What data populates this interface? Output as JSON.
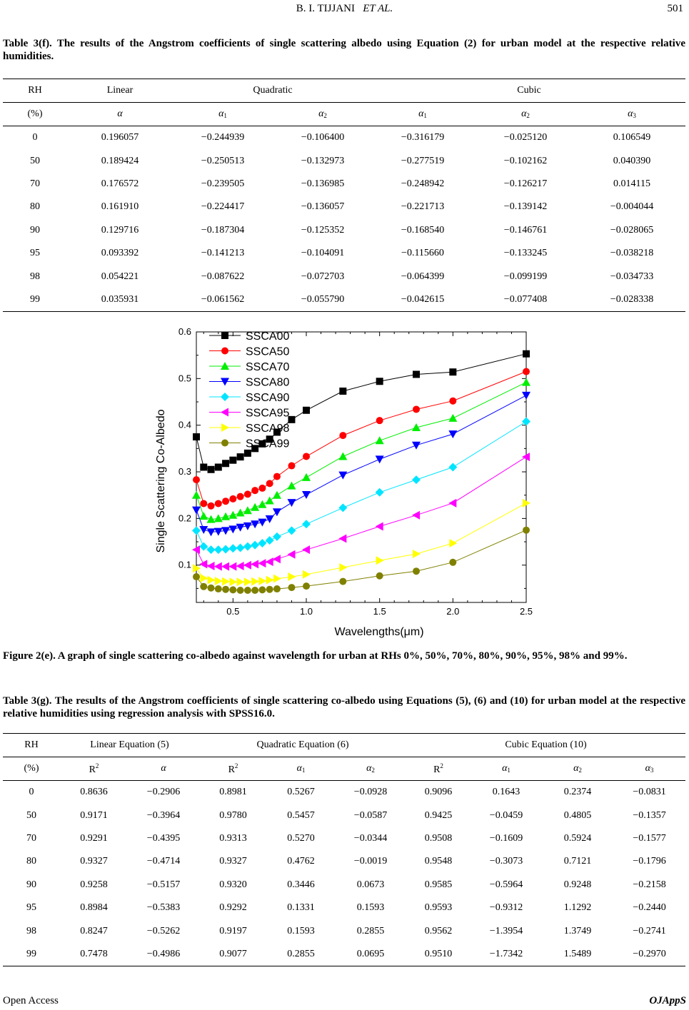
{
  "header": {
    "authors": "B. I. TIJJANI",
    "etal": "ET AL.",
    "page": "501"
  },
  "table_f": {
    "caption": "Table 3(f). The results of the Angstrom coefficients of single scattering albedo using Equation (2) for urban model at the respective relative humidities.",
    "groups": [
      "RH",
      "Linear",
      "Quadratic",
      "Cubic"
    ],
    "subheads": [
      "(%)",
      "α",
      "α",
      "α",
      "α",
      "α",
      "α"
    ],
    "subs": [
      "",
      "",
      "1",
      "2",
      "1",
      "2",
      "3"
    ],
    "rows": [
      [
        "0",
        "0.196057",
        "−0.244939",
        "−0.106400",
        "−0.316179",
        "−0.025120",
        "0.106549"
      ],
      [
        "50",
        "0.189424",
        "−0.250513",
        "−0.132973",
        "−0.277519",
        "−0.102162",
        "0.040390"
      ],
      [
        "70",
        "0.176572",
        "−0.239505",
        "−0.136985",
        "−0.248942",
        "−0.126217",
        "0.014115"
      ],
      [
        "80",
        "0.161910",
        "−0.224417",
        "−0.136057",
        "−0.221713",
        "−0.139142",
        "−0.004044"
      ],
      [
        "90",
        "0.129716",
        "−0.187304",
        "−0.125352",
        "−0.168540",
        "−0.146761",
        "−0.028065"
      ],
      [
        "95",
        "0.093392",
        "−0.141213",
        "−0.104091",
        "−0.115660",
        "−0.133245",
        "−0.038218"
      ],
      [
        "98",
        "0.054221",
        "−0.087622",
        "−0.072703",
        "−0.064399",
        "−0.099199",
        "−0.034733"
      ],
      [
        "99",
        "0.035931",
        "−0.061562",
        "−0.055790",
        "−0.042615",
        "−0.077408",
        "−0.028338"
      ]
    ]
  },
  "figure": {
    "caption": "Figure 2(e). A graph of single scattering co-albedo against wavelength for urban at RHs 0%, 50%, 70%, 80%, 90%, 95%, 98% and 99%."
  },
  "chart_data": {
    "type": "line",
    "xlabel": "Wavelengths(μm)",
    "ylabel": "Single Scattering Co-Albedo",
    "xlim": [
      0.25,
      2.5
    ],
    "ylim": [
      0.02,
      0.6
    ],
    "xticks": [
      "0.5",
      "1.0",
      "1.5",
      "2.0",
      "2.5"
    ],
    "xtick_values": [
      0.5,
      1.0,
      1.5,
      2.0,
      2.5
    ],
    "yticks": [
      "0.1",
      "0.2",
      "0.3",
      "0.4",
      "0.5",
      "0.6"
    ],
    "ytick_values": [
      0.1,
      0.2,
      0.3,
      0.4,
      0.5,
      0.6
    ],
    "legend_position": "top-left",
    "x": [
      0.25,
      0.3,
      0.35,
      0.4,
      0.45,
      0.5,
      0.55,
      0.6,
      0.65,
      0.7,
      0.75,
      0.8,
      0.9,
      1.0,
      1.25,
      1.5,
      1.75,
      2.0,
      2.5
    ],
    "series": [
      {
        "name": "SSCA00",
        "color": "#000000",
        "marker": "square",
        "values": [
          0.375,
          0.31,
          0.305,
          0.31,
          0.318,
          0.325,
          0.332,
          0.34,
          0.35,
          0.36,
          0.37,
          0.385,
          0.412,
          0.432,
          0.473,
          0.494,
          0.509,
          0.514,
          0.553
        ]
      },
      {
        "name": "SSCA50",
        "color": "#ff0000",
        "marker": "circle",
        "values": [
          0.283,
          0.232,
          0.227,
          0.232,
          0.237,
          0.242,
          0.247,
          0.252,
          0.26,
          0.265,
          0.275,
          0.29,
          0.313,
          0.333,
          0.378,
          0.41,
          0.434,
          0.452,
          0.515
        ]
      },
      {
        "name": "SSCA70",
        "color": "#00ee00",
        "marker": "triangle-up",
        "values": [
          0.25,
          0.205,
          0.198,
          0.2,
          0.204,
          0.207,
          0.212,
          0.217,
          0.224,
          0.23,
          0.238,
          0.25,
          0.27,
          0.288,
          0.333,
          0.367,
          0.395,
          0.415,
          0.492
        ]
      },
      {
        "name": "SSCA80",
        "color": "#0000ff",
        "marker": "triangle-down",
        "values": [
          0.218,
          0.176,
          0.171,
          0.172,
          0.174,
          0.177,
          0.181,
          0.184,
          0.188,
          0.192,
          0.199,
          0.214,
          0.234,
          0.251,
          0.293,
          0.327,
          0.357,
          0.381,
          0.464
        ]
      },
      {
        "name": "SSCA90",
        "color": "#00e5ff",
        "marker": "diamond",
        "values": [
          0.174,
          0.14,
          0.133,
          0.133,
          0.134,
          0.136,
          0.137,
          0.14,
          0.143,
          0.147,
          0.153,
          0.161,
          0.174,
          0.188,
          0.223,
          0.256,
          0.283,
          0.31,
          0.408
        ]
      },
      {
        "name": "SSCA95",
        "color": "#ff00ff",
        "marker": "triangle-left",
        "values": [
          0.133,
          0.102,
          0.098,
          0.097,
          0.097,
          0.097,
          0.098,
          0.1,
          0.102,
          0.104,
          0.107,
          0.113,
          0.123,
          0.133,
          0.157,
          0.183,
          0.207,
          0.233,
          0.332
        ]
      },
      {
        "name": "SSCA98",
        "color": "#ffff00",
        "marker": "triangle-right",
        "values": [
          0.093,
          0.072,
          0.068,
          0.066,
          0.065,
          0.064,
          0.064,
          0.064,
          0.065,
          0.066,
          0.068,
          0.071,
          0.075,
          0.08,
          0.095,
          0.11,
          0.124,
          0.147,
          0.233
        ]
      },
      {
        "name": "SSCA99",
        "color": "#808000",
        "marker": "circle",
        "values": [
          0.075,
          0.054,
          0.051,
          0.049,
          0.048,
          0.047,
          0.046,
          0.046,
          0.046,
          0.047,
          0.048,
          0.049,
          0.052,
          0.055,
          0.065,
          0.077,
          0.087,
          0.106,
          0.175
        ]
      }
    ]
  },
  "table_g": {
    "caption": "Table 3(g). The results of the Angstrom coefficients of single scattering co-albedo using Equations (5), (6) and (10) for urban model at the respective relative humidities using regression analysis with SPSS16.0.",
    "groups": [
      "RH",
      "Linear Equation (5)",
      "Quadratic Equation (6)",
      "Cubic Equation (10)"
    ],
    "subheads": [
      "(%)",
      "R",
      "α",
      "R",
      "α",
      "α",
      "R",
      "α",
      "α",
      "α"
    ],
    "subs": [
      "",
      "",
      "",
      "",
      "1",
      "2",
      "",
      "1",
      "2",
      "3"
    ],
    "sups": [
      "",
      "2",
      "",
      "2",
      "",
      "",
      "2",
      "",
      "",
      ""
    ],
    "rows": [
      [
        "0",
        "0.8636",
        "−0.2906",
        "0.8981",
        "0.5267",
        "−0.0928",
        "0.9096",
        "0.1643",
        "0.2374",
        "−0.0831"
      ],
      [
        "50",
        "0.9171",
        "−0.3964",
        "0.9780",
        "0.5457",
        "−0.0587",
        "0.9425",
        "−0.0459",
        "0.4805",
        "−0.1357"
      ],
      [
        "70",
        "0.9291",
        "−0.4395",
        "0.9313",
        "0.5270",
        "−0.0344",
        "0.9508",
        "−0.1609",
        "0.5924",
        "−0.1577"
      ],
      [
        "80",
        "0.9327",
        "−0.4714",
        "0.9327",
        "0.4762",
        "−0.0019",
        "0.9548",
        "−0.3073",
        "0.7121",
        "−0.1796"
      ],
      [
        "90",
        "0.9258",
        "−0.5157",
        "0.9320",
        "0.3446",
        "0.0673",
        "0.9585",
        "−0.5964",
        "0.9248",
        "−0.2158"
      ],
      [
        "95",
        "0.8984",
        "−0.5383",
        "0.9292",
        "0.1331",
        "0.1593",
        "0.9593",
        "−0.9312",
        "1.1292",
        "−0.2440"
      ],
      [
        "98",
        "0.8247",
        "−0.5262",
        "0.9197",
        "0.1593",
        "0.2855",
        "0.9562",
        "−1.3954",
        "1.3749",
        "−0.2741"
      ],
      [
        "99",
        "0.7478",
        "−0.4986",
        "0.9077",
        "0.2855",
        "0.0695",
        "0.9510",
        "−1.7342",
        "1.5489",
        "−0.2970"
      ]
    ]
  },
  "footer": {
    "left": "Open Access",
    "right": "OJAppS"
  }
}
